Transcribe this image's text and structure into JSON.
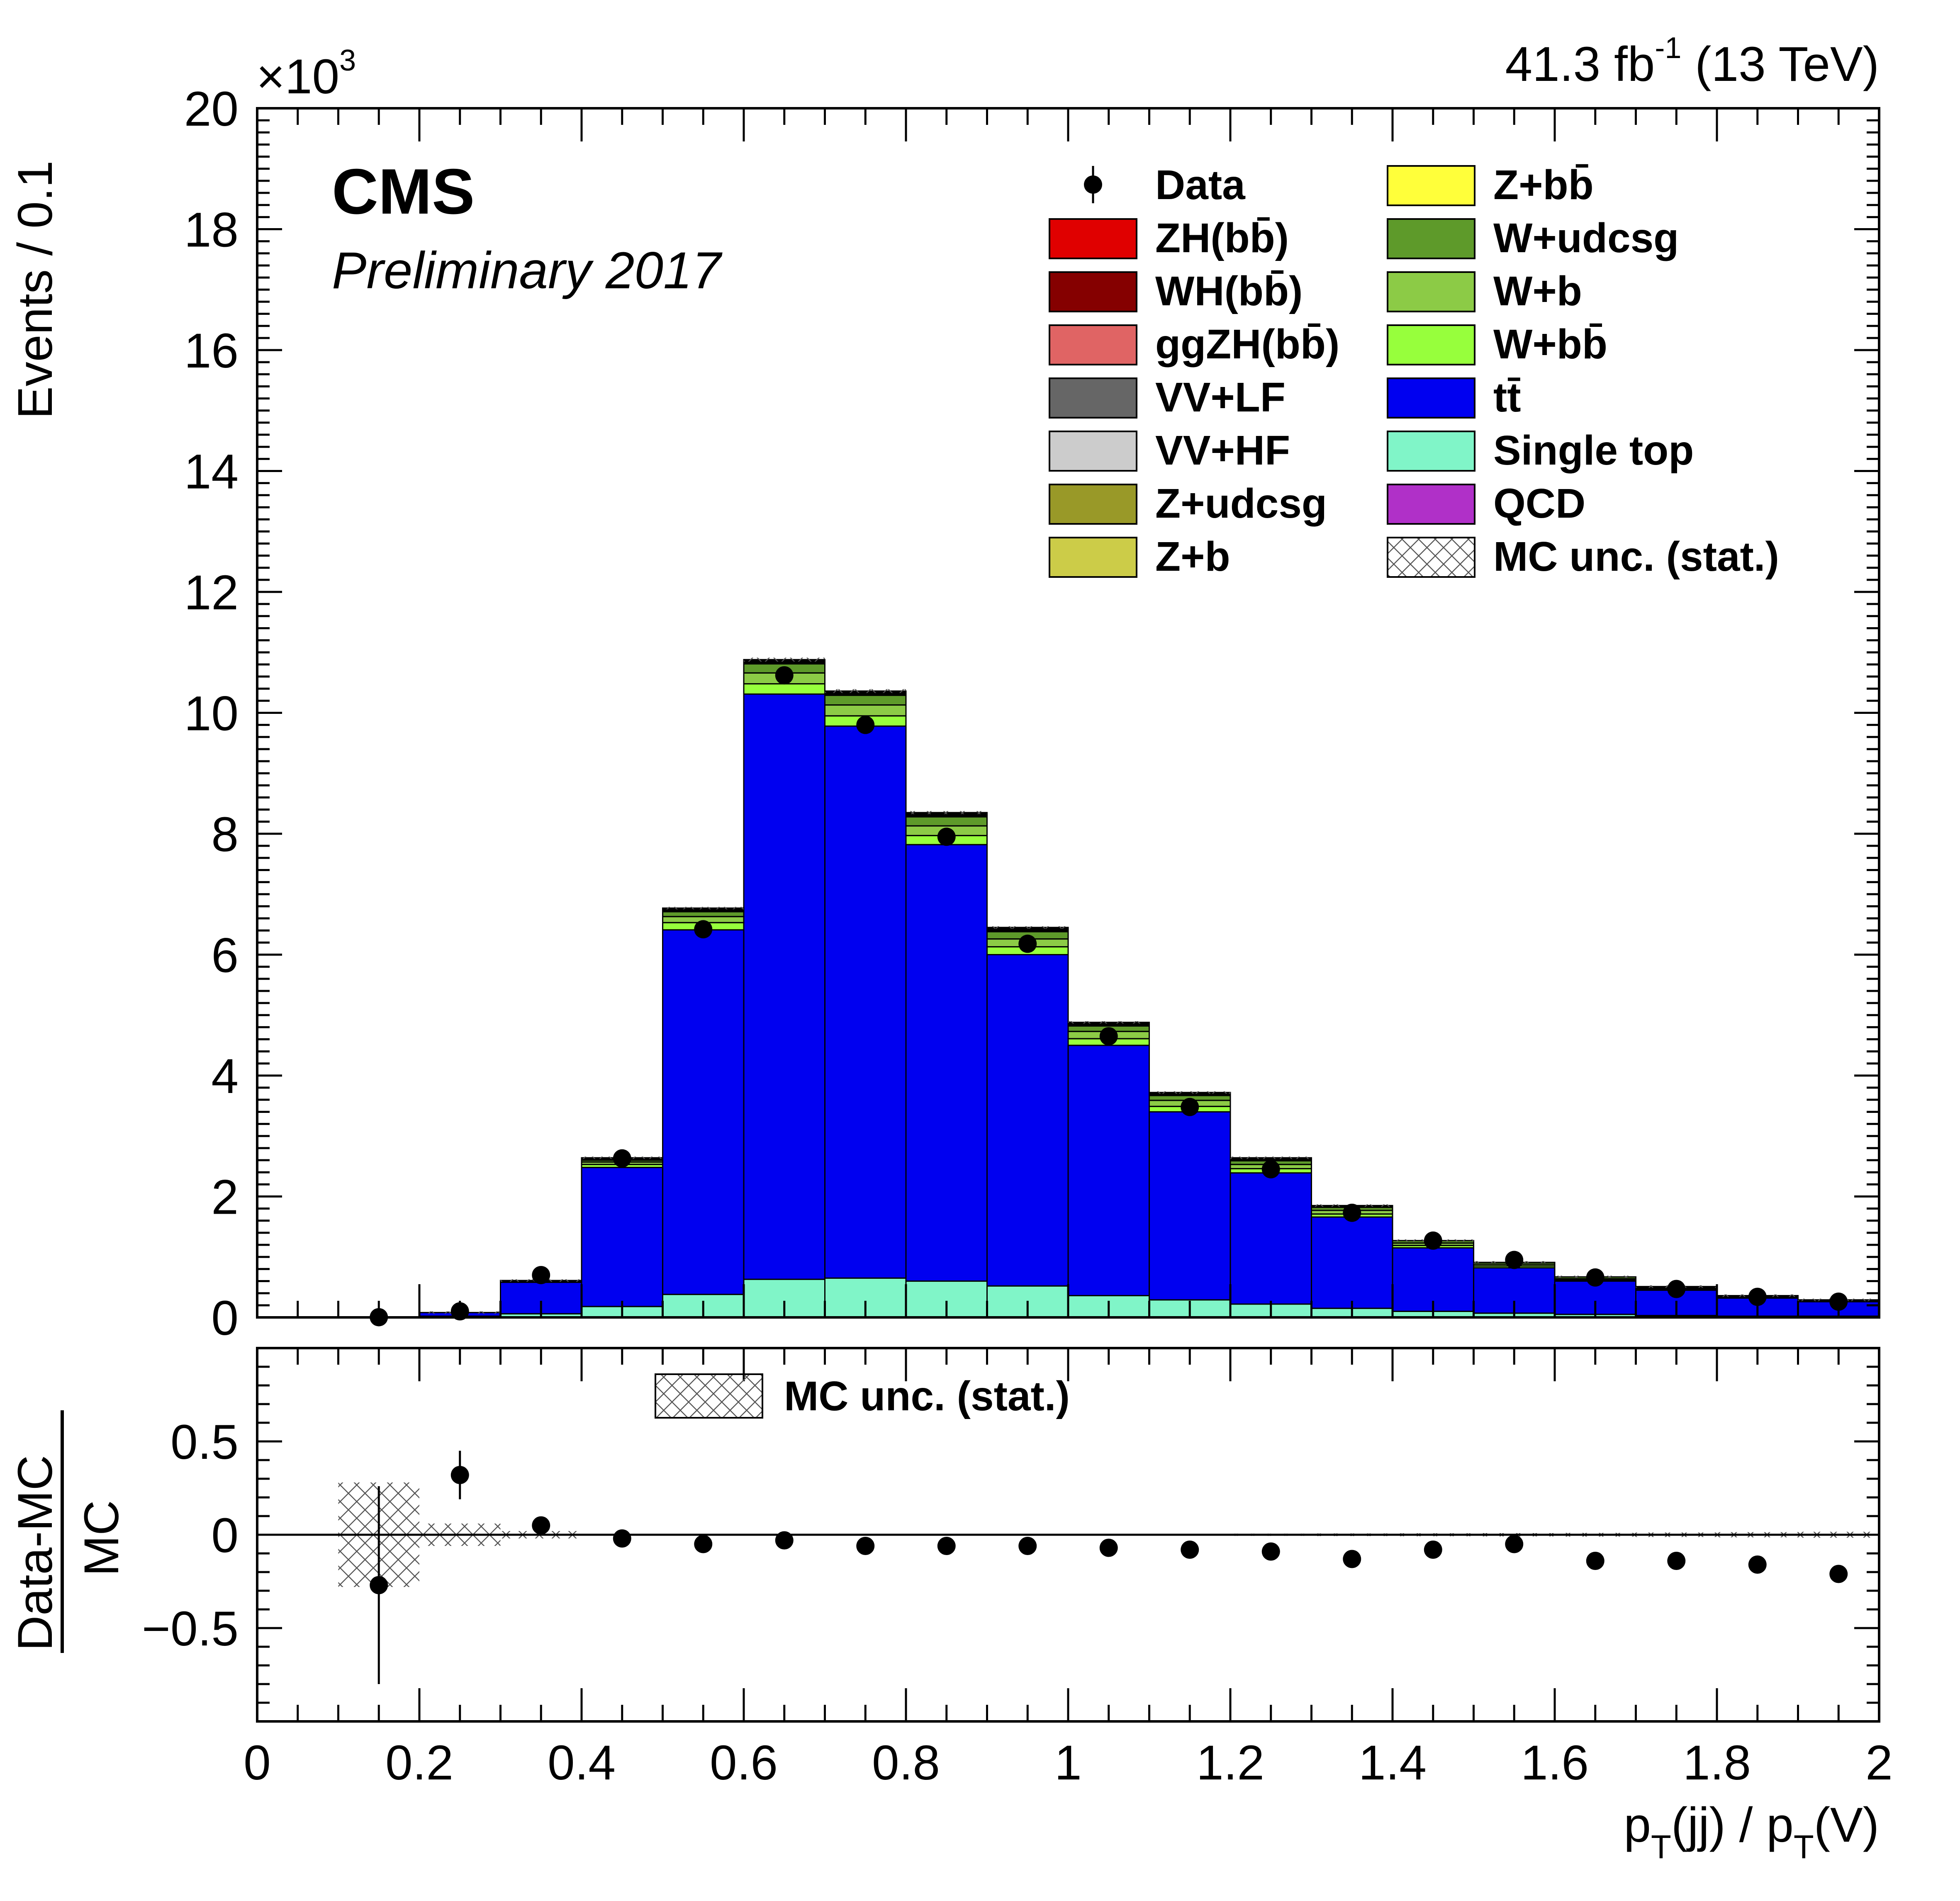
{
  "header": {
    "lumi": "41.3 fb",
    "lumi_sup": "-1",
    "lumi_tail": " (13 TeV)",
    "cms": "CMS",
    "prelim": "Preliminary 2017",
    "exp_base": "×10",
    "exp_sup": "3"
  },
  "chart_data": [
    {
      "type": "bar",
      "stacked": true,
      "ylabel": "Events / 0.1",
      "y_scale_factor": 1000,
      "xlim": [
        0,
        2
      ],
      "ylim": [
        0,
        20
      ],
      "x_ticks": [
        "0",
        "0.2",
        "0.4",
        "0.6",
        "0.8",
        "1",
        "1.2",
        "1.4",
        "1.6",
        "1.8",
        "2"
      ],
      "y_ticks": [
        "0",
        "2",
        "4",
        "6",
        "8",
        "10",
        "12",
        "14",
        "16",
        "18",
        "20"
      ],
      "bin_edges": [
        0.0,
        0.1,
        0.2,
        0.3,
        0.4,
        0.5,
        0.6,
        0.7,
        0.8,
        0.9,
        1.0,
        1.1,
        1.2,
        1.3,
        1.4,
        1.5,
        1.6,
        1.7,
        1.8,
        1.9,
        2.0
      ],
      "series": [
        {
          "name": "Single top",
          "color": "#80f5c8",
          "values": [
            0,
            0,
            0.02,
            0.06,
            0.18,
            0.38,
            0.63,
            0.65,
            0.6,
            0.52,
            0.36,
            0.29,
            0.22,
            0.15,
            0.1,
            0.07,
            0.05,
            0.03,
            0.02,
            0.02
          ]
        },
        {
          "name": "tt̄",
          "color": "#0000f0",
          "values": [
            0,
            0,
            0.06,
            0.52,
            2.3,
            6.03,
            9.68,
            9.13,
            7.22,
            5.48,
            4.14,
            3.11,
            2.17,
            1.51,
            1.05,
            0.75,
            0.55,
            0.42,
            0.3,
            0.24
          ]
        },
        {
          "name": "W+bb̄",
          "color": "#97ff3c",
          "values": [
            0,
            0,
            0,
            0.01,
            0.05,
            0.12,
            0.17,
            0.17,
            0.15,
            0.13,
            0.11,
            0.09,
            0.07,
            0.05,
            0.04,
            0.03,
            0.02,
            0.02,
            0.01,
            0.01
          ]
        },
        {
          "name": "W+b",
          "color": "#8ccb46",
          "values": [
            0,
            0,
            0,
            0.01,
            0.04,
            0.1,
            0.18,
            0.18,
            0.16,
            0.13,
            0.12,
            0.1,
            0.07,
            0.06,
            0.04,
            0.03,
            0.02,
            0.02,
            0.01,
            0.01
          ]
        },
        {
          "name": "W+udcsg",
          "color": "#5e9a2a",
          "values": [
            0,
            0,
            0,
            0.01,
            0.03,
            0.08,
            0.15,
            0.16,
            0.15,
            0.12,
            0.09,
            0.08,
            0.06,
            0.05,
            0.04,
            0.03,
            0.03,
            0.02,
            0.02,
            0.01
          ]
        },
        {
          "name": "Z+bb̄",
          "color": "#ffff3a",
          "values": [
            0,
            0,
            0,
            0,
            0.01,
            0.02,
            0.02,
            0.02,
            0.02,
            0.02,
            0.02,
            0.01,
            0.01,
            0.01,
            0,
            0,
            0,
            0,
            0,
            0
          ]
        },
        {
          "name": "Z+b",
          "color": "#cccc48",
          "values": [
            0,
            0,
            0,
            0,
            0.01,
            0.01,
            0.01,
            0.01,
            0.01,
            0.01,
            0.01,
            0.01,
            0.01,
            0,
            0,
            0,
            0,
            0,
            0,
            0
          ]
        },
        {
          "name": "Z+udcsg",
          "color": "#999928",
          "values": [
            0,
            0,
            0,
            0,
            0.01,
            0.01,
            0.02,
            0.02,
            0.02,
            0.02,
            0.01,
            0.01,
            0.01,
            0.01,
            0,
            0,
            0,
            0,
            0,
            0
          ]
        },
        {
          "name": "VV+HF",
          "color": "#cccccc",
          "values": [
            0,
            0,
            0,
            0,
            0,
            0.01,
            0.01,
            0.01,
            0.01,
            0.01,
            0.01,
            0.01,
            0.01,
            0,
            0,
            0,
            0,
            0,
            0,
            0
          ]
        },
        {
          "name": "VV+LF",
          "color": "#666666",
          "values": [
            0,
            0,
            0,
            0,
            0.01,
            0.01,
            0.01,
            0.01,
            0.01,
            0.01,
            0.01,
            0.01,
            0.01,
            0.01,
            0,
            0,
            0,
            0,
            0,
            0
          ]
        },
        {
          "name": "ggZH(bb̄)",
          "color": "#e06464",
          "values": [
            0,
            0,
            0,
            0,
            0,
            0,
            0,
            0,
            0,
            0,
            0,
            0,
            0,
            0,
            0,
            0,
            0,
            0,
            0,
            0
          ]
        },
        {
          "name": "WH(bb̄)",
          "color": "#850000",
          "values": [
            0,
            0,
            0,
            0,
            0,
            0,
            0,
            0,
            0,
            0,
            0,
            0,
            0,
            0,
            0,
            0,
            0,
            0,
            0,
            0
          ]
        },
        {
          "name": "ZH(bb̄)",
          "color": "#e00000",
          "values": [
            0,
            0,
            0,
            0,
            0,
            0,
            0,
            0,
            0,
            0,
            0,
            0,
            0,
            0,
            0,
            0,
            0,
            0,
            0,
            0
          ]
        },
        {
          "name": "QCD",
          "color": "#b030c8",
          "values": [
            0,
            0,
            0,
            0,
            0,
            0,
            0,
            0,
            0,
            0,
            0,
            0,
            0,
            0,
            0,
            0,
            0,
            0,
            0,
            0
          ]
        }
      ],
      "data": {
        "name": "Data",
        "x": [
          0.15,
          0.25,
          0.35,
          0.45,
          0.55,
          0.65,
          0.75,
          0.85,
          0.95,
          1.05,
          1.15,
          1.25,
          1.35,
          1.45,
          1.55,
          1.65,
          1.75,
          1.85,
          1.95
        ],
        "y": [
          0.003,
          0.1,
          0.7,
          2.63,
          6.42,
          10.62,
          9.8,
          7.95,
          6.18,
          4.65,
          3.48,
          2.45,
          1.73,
          1.27,
          0.95,
          0.66,
          0.47,
          0.34,
          0.26
        ]
      },
      "legend": {
        "col1": [
          "Data",
          "ZH(bb̄)",
          "WH(bb̄)",
          "ggZH(bb̄)",
          "VV+LF",
          "VV+HF",
          "Z+udcsg",
          "Z+b"
        ],
        "col2": [
          "Z+bb̄",
          "W+udcsg",
          "W+b",
          "W+bb̄",
          "tt̄",
          "Single top",
          "QCD",
          "MC unc. (stat.)"
        ],
        "placement": "top-right"
      }
    },
    {
      "type": "scatter",
      "ylabel_num": "Data-MC",
      "ylabel_den": "MC",
      "xlabel_main": "p",
      "xlabel_sub1": "T",
      "xlabel_mid": "(jj) / p",
      "xlabel_sub2": "T",
      "xlabel_tail": "(V)",
      "xlim": [
        0,
        2
      ],
      "ylim": [
        -1,
        1
      ],
      "y_ticks": [
        "0.5",
        "0",
        "−0.5"
      ],
      "y_tick_values": [
        0.5,
        0,
        -0.5
      ],
      "x": [
        0.15,
        0.25,
        0.35,
        0.45,
        0.55,
        0.65,
        0.75,
        0.85,
        0.95,
        1.05,
        1.15,
        1.25,
        1.35,
        1.45,
        1.55,
        1.65,
        1.75,
        1.85,
        1.95
      ],
      "y": [
        -0.27,
        0.32,
        0.05,
        -0.02,
        -0.05,
        -0.03,
        -0.06,
        -0.06,
        -0.06,
        -0.07,
        -0.08,
        -0.09,
        -0.13,
        -0.08,
        -0.05,
        -0.14,
        -0.14,
        -0.16,
        -0.21
      ],
      "y_err": [
        0.53,
        0.13,
        0.03,
        0.015,
        0.01,
        0.01,
        0.01,
        0.01,
        0.01,
        0.01,
        0.012,
        0.015,
        0.02,
        0.02,
        0.025,
        0.025,
        0.025,
        0.03,
        0.035
      ],
      "mc_unc": [
        0.28,
        0.06,
        0.02,
        0.005,
        0.004,
        0.003,
        0.003,
        0.003,
        0.004,
        0.004,
        0.005,
        0.006,
        0.007,
        0.008,
        0.009,
        0.01,
        0.012,
        0.014,
        0.016
      ],
      "legend": [
        "MC unc. (stat.)"
      ]
    }
  ]
}
